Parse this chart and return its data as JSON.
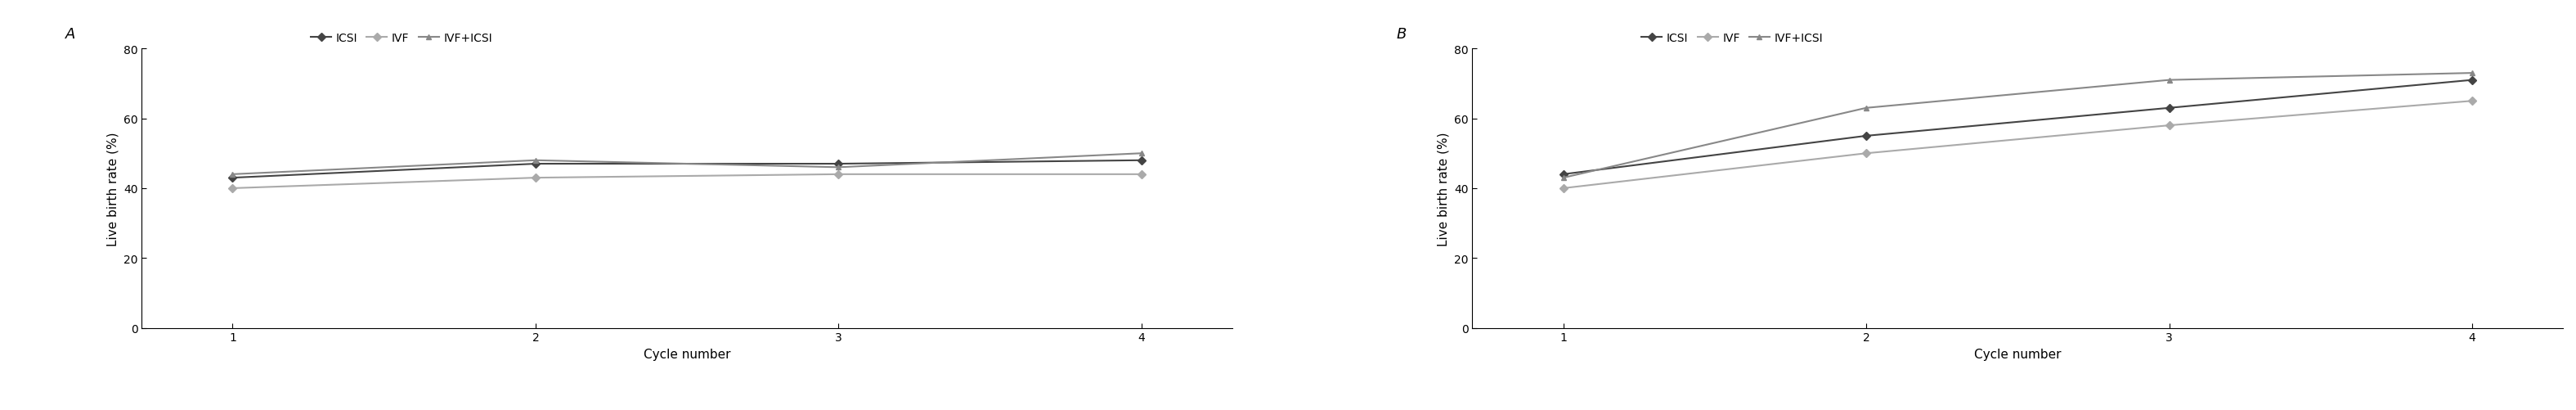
{
  "panel_A": {
    "label": "A",
    "x": [
      1,
      2,
      3,
      4
    ],
    "ICSI": [
      43,
      47,
      47,
      48
    ],
    "IVF": [
      40,
      43,
      44,
      44
    ],
    "IVF_ICSI": [
      44,
      48,
      46,
      50
    ],
    "ylabel": "Live birth rate (%)",
    "xlabel": "Cycle number",
    "ylim": [
      0,
      80
    ],
    "yticks": [
      0,
      20,
      40,
      60,
      80
    ],
    "xticks": [
      1,
      2,
      3,
      4
    ]
  },
  "panel_B": {
    "label": "B",
    "x": [
      1,
      2,
      3,
      4
    ],
    "ICSI": [
      44,
      55,
      63,
      71
    ],
    "IVF": [
      40,
      50,
      58,
      65
    ],
    "IVF_ICSI": [
      43,
      63,
      71,
      73
    ],
    "ylabel": "Live birth rate (%)",
    "xlabel": "Cycle number",
    "ylim": [
      0,
      80
    ],
    "yticks": [
      0,
      20,
      40,
      60,
      80
    ],
    "xticks": [
      1,
      2,
      3,
      4
    ]
  },
  "legend_labels": [
    "ICSI",
    "IVF",
    "IVF+ICSI"
  ],
  "color_ICSI": "#444444",
  "color_IVF": "#aaaaaa",
  "color_IVF_ICSI": "#888888",
  "marker_ICSI": "D",
  "marker_IVF": "D",
  "marker_IVF_ICSI": "^",
  "linewidth": 1.5,
  "markersize": 5,
  "fontsize_label": 11,
  "fontsize_tick": 10,
  "fontsize_legend": 10,
  "fontsize_panel": 13
}
